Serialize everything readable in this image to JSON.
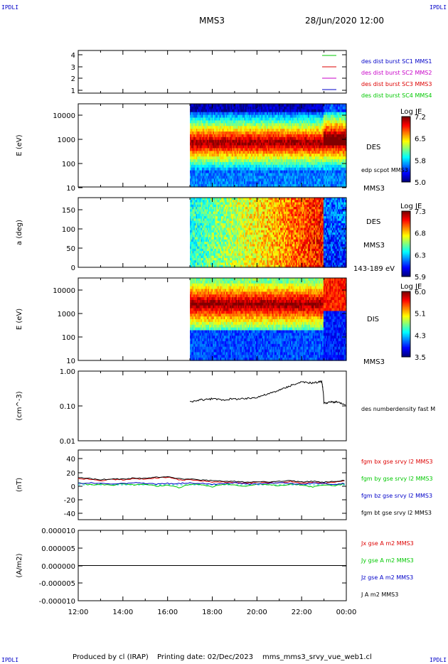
{
  "header": {
    "title": "MMS3",
    "date": "28/Jun/2020 12:00",
    "corner_label": "IPDLI"
  },
  "footer": {
    "producer": "Produced by cl (IRAP)",
    "printing_date": "Printing date: 02/Dec/2023",
    "filename": "mms_mms3_srvy_vue_web1.cl"
  },
  "x_axis": {
    "ticks": [
      "12:00",
      "14:00",
      "16:00",
      "18:00",
      "20:00",
      "22:00",
      "00:00"
    ]
  },
  "chart_data": [
    {
      "type": "line",
      "panel": "sc_position",
      "ylim": [
        0.6,
        4.4
      ],
      "yticks": [
        "4",
        "3",
        "2",
        "1"
      ],
      "ylabel": "",
      "legend": [
        {
          "label": "des dist burst SC1 MMS1",
          "color": "#0000c8",
          "mark_color": "#00c800"
        },
        {
          "label": "des dist burst SC2 MMS2",
          "color": "#c800c8",
          "mark_color": "#dd0000"
        },
        {
          "label": "des dist burst SC3 MMS3",
          "color": "#dd0000",
          "mark_color": "#c800c8"
        },
        {
          "label": "des dist burst SC4 MMS4",
          "color": "#00c800",
          "mark_color": "#0000c8"
        }
      ]
    },
    {
      "type": "heatmap",
      "panel": "des_energy",
      "ylabel": "E (eV)",
      "log_y": true,
      "ylim": [
        10,
        30000
      ],
      "yticks": [
        "10000",
        "1000",
        "100",
        "10"
      ],
      "data_start": "17:00",
      "data_end": "00:00",
      "labels": [
        "DES",
        "edp scpot MMS3",
        "MMS3"
      ],
      "colorbar": {
        "title": "Log JE",
        "ticks": [
          "7.2",
          "6.5",
          "5.8",
          "5.0"
        ],
        "range": [
          5.0,
          7.3
        ]
      }
    },
    {
      "type": "heatmap",
      "panel": "des_pitch",
      "ylabel": "a (deg)",
      "ylim": [
        0,
        180
      ],
      "yticks": [
        "150",
        "100",
        "50",
        "0"
      ],
      "data_start": "17:00",
      "data_end": "00:00",
      "labels": [
        "DES",
        "MMS3",
        "143-189 eV"
      ],
      "colorbar": {
        "title": "Log JE",
        "ticks": [
          "7.3",
          "6.8",
          "6.3",
          "5.9"
        ],
        "range": [
          5.9,
          7.4
        ]
      }
    },
    {
      "type": "heatmap",
      "panel": "dis_energy",
      "ylabel": "E (eV)",
      "log_y": true,
      "ylim": [
        10,
        30000
      ],
      "yticks": [
        "10000",
        "1000",
        "100",
        "10"
      ],
      "data_start": "17:00",
      "data_end": "00:00",
      "labels": [
        "DIS",
        "MMS3"
      ],
      "colorbar": {
        "title": "Log JE",
        "ticks": [
          "6.0",
          "5.1",
          "4.3",
          "3.5"
        ],
        "range": [
          3.5,
          6.1
        ]
      }
    },
    {
      "type": "line",
      "panel": "density",
      "ylabel": "(cm^-3)",
      "log_y": true,
      "ylim": [
        0.01,
        1.0
      ],
      "yticks": [
        "1.00",
        "0.10",
        "0.01"
      ],
      "series": [
        {
          "name": "des numberdensity fast M",
          "color": "#000000",
          "x_hours": [
            17.0,
            17.5,
            18.0,
            18.5,
            19.0,
            19.5,
            20.0,
            20.5,
            21.0,
            21.5,
            22.0,
            22.5,
            22.9,
            23.0,
            23.3,
            23.6,
            24.0
          ],
          "values": [
            0.13,
            0.15,
            0.16,
            0.15,
            0.16,
            0.16,
            0.18,
            0.22,
            0.28,
            0.38,
            0.48,
            0.46,
            0.5,
            0.12,
            0.13,
            0.13,
            0.1
          ]
        }
      ]
    },
    {
      "type": "line",
      "panel": "magnetic_field",
      "ylabel": "(nT)",
      "ylim": [
        -50,
        50
      ],
      "yticks": [
        "40",
        "20",
        "0",
        "-20",
        "-40"
      ],
      "x_hours": [
        12.0,
        12.5,
        13.0,
        13.5,
        14.0,
        14.5,
        15.0,
        15.5,
        16.0,
        16.5,
        17.0,
        17.5,
        18.0,
        18.5,
        19.0,
        19.5,
        20.0,
        20.5,
        21.0,
        21.5,
        22.0,
        22.5,
        23.0,
        23.5,
        24.0
      ],
      "series": [
        {
          "name": "fgm bx gse srvy l2 MMS3",
          "color": "#dd0000",
          "values": [
            9,
            8,
            6,
            8,
            7,
            9,
            8,
            10,
            11,
            7,
            7,
            6,
            4,
            4,
            3,
            2,
            4,
            3,
            3,
            5,
            2,
            4,
            2,
            4,
            6
          ]
        },
        {
          "name": "fgm by gse srvy l2 MMS3",
          "color": "#00c800",
          "values": [
            3,
            0,
            1,
            -1,
            2,
            0,
            1,
            -2,
            0,
            -4,
            1,
            0,
            -3,
            1,
            0,
            -2,
            1,
            0,
            -1,
            1,
            0,
            -3,
            0,
            -1,
            2
          ]
        },
        {
          "name": "fgm bz gse srvy l2 MMS3",
          "color": "#0000c8",
          "values": [
            2,
            3,
            2,
            1,
            2,
            3,
            2,
            1,
            2,
            2,
            3,
            2,
            1,
            2,
            3,
            2,
            1,
            2,
            3,
            2,
            1,
            2,
            2,
            1,
            2
          ]
        },
        {
          "name": "fgm bt gse srvy l2 MMS3",
          "color": "#000000",
          "values": [
            11,
            9,
            7,
            9,
            8,
            10,
            9,
            11,
            12,
            9,
            8,
            7,
            6,
            5,
            5,
            4,
            5,
            4,
            5,
            6,
            4,
            5,
            4,
            5,
            7
          ]
        }
      ]
    },
    {
      "type": "line",
      "panel": "current_density",
      "ylabel": "(A/m2)",
      "ylim": [
        -1e-05,
        1e-05
      ],
      "yticks": [
        "0.000010",
        "0.000005",
        "0.000000",
        "-0.000005",
        "-0.000010"
      ],
      "series": [
        {
          "name": "Jx gse A m2 MMS3",
          "color": "#dd0000",
          "values": [
            0,
            0
          ]
        },
        {
          "name": "Jy gse A m2 MMS3",
          "color": "#00c800",
          "values": [
            0,
            0
          ]
        },
        {
          "name": "Jz gse A m2 MMS3",
          "color": "#0000c8",
          "values": [
            0,
            0
          ]
        },
        {
          "name": "J A m2 MMS3",
          "color": "#000000",
          "values": [
            0,
            0
          ]
        }
      ]
    }
  ]
}
